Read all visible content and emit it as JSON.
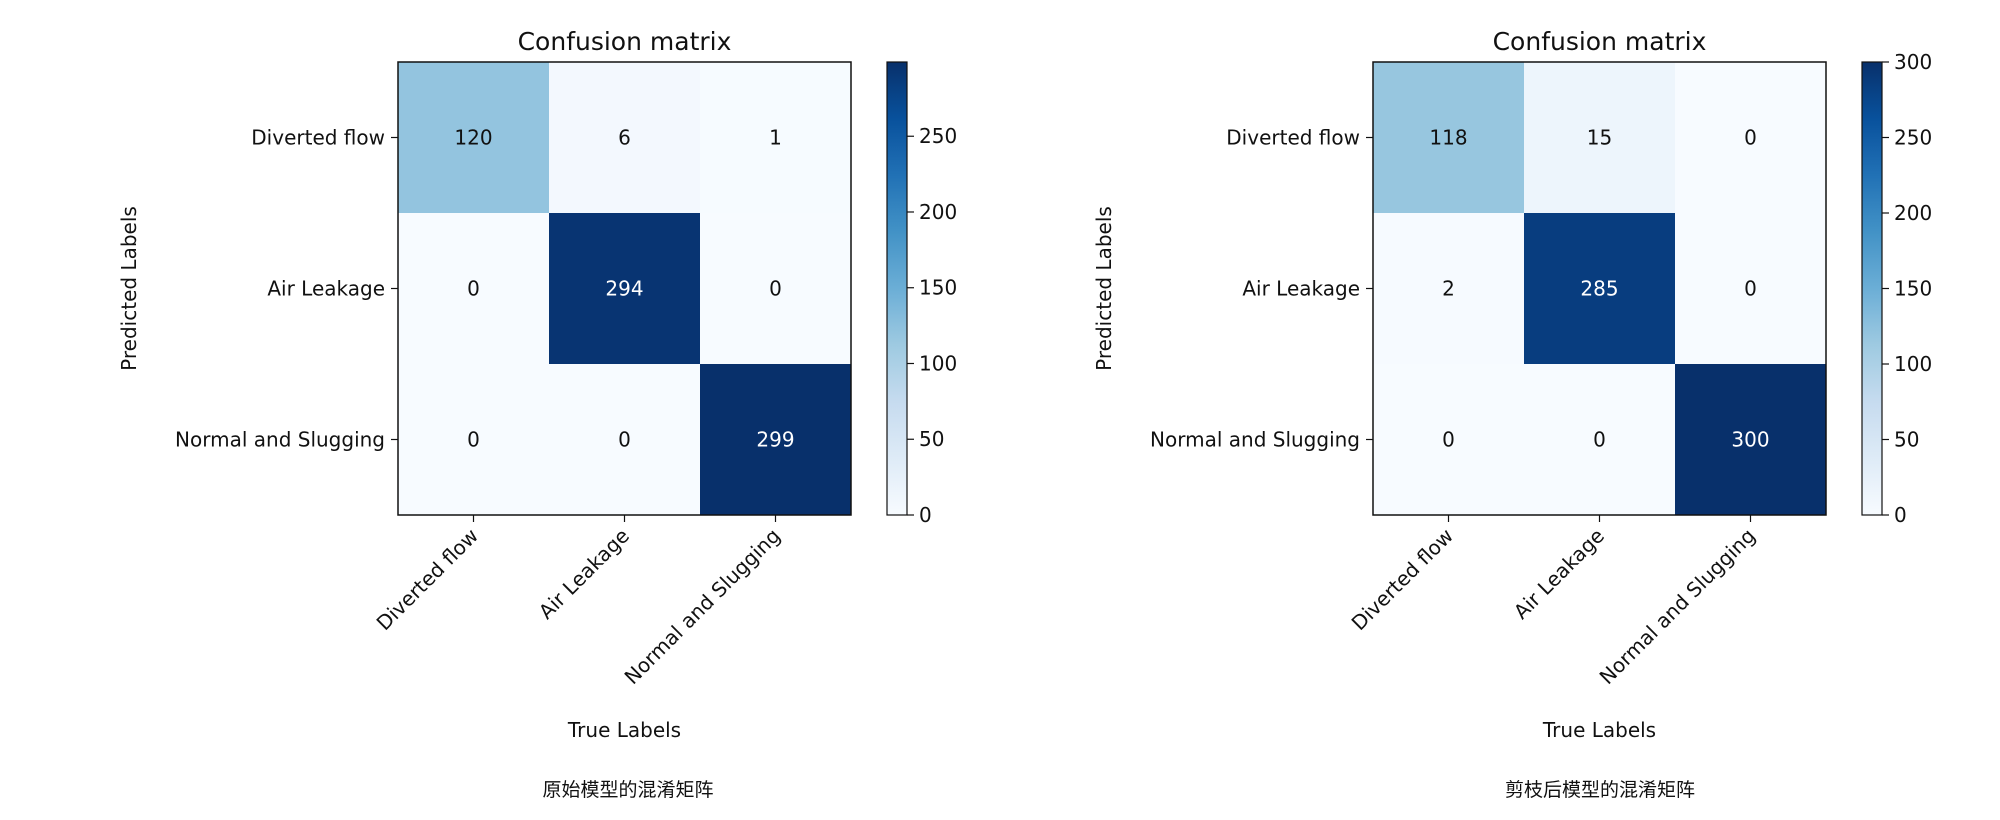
{
  "chart_data": [
    {
      "type": "heatmap",
      "title": "Confusion matrix",
      "xlabel": "True Labels",
      "ylabel": "Predicted Labels",
      "categories": [
        "Diverted flow",
        "Air Leakage",
        "Normal and Slugging"
      ],
      "matrix": [
        [
          120,
          6,
          1
        ],
        [
          0,
          294,
          0
        ],
        [
          0,
          0,
          299
        ]
      ],
      "colorbar": {
        "min": 0,
        "max": 299,
        "ticks": [
          0,
          50,
          100,
          150,
          200,
          250
        ]
      },
      "colormap": "Blues",
      "caption": "原始模型的混淆矩阵"
    },
    {
      "type": "heatmap",
      "title": "Confusion matrix",
      "xlabel": "True Labels",
      "ylabel": "Predicted Labels",
      "categories": [
        "Diverted flow",
        "Air Leakage",
        "Normal and Slugging"
      ],
      "matrix": [
        [
          118,
          15,
          0
        ],
        [
          2,
          285,
          0
        ],
        [
          0,
          0,
          300
        ]
      ],
      "colorbar": {
        "min": 0,
        "max": 300,
        "ticks": [
          0,
          50,
          100,
          150,
          200,
          250,
          300
        ]
      },
      "colormap": "Blues",
      "caption": "剪枝后模型的混淆矩阵"
    }
  ],
  "colors": {
    "low": "#f7fbff",
    "high": "#08306b",
    "text_dark": "#111111",
    "text_light": "#ffffff"
  }
}
